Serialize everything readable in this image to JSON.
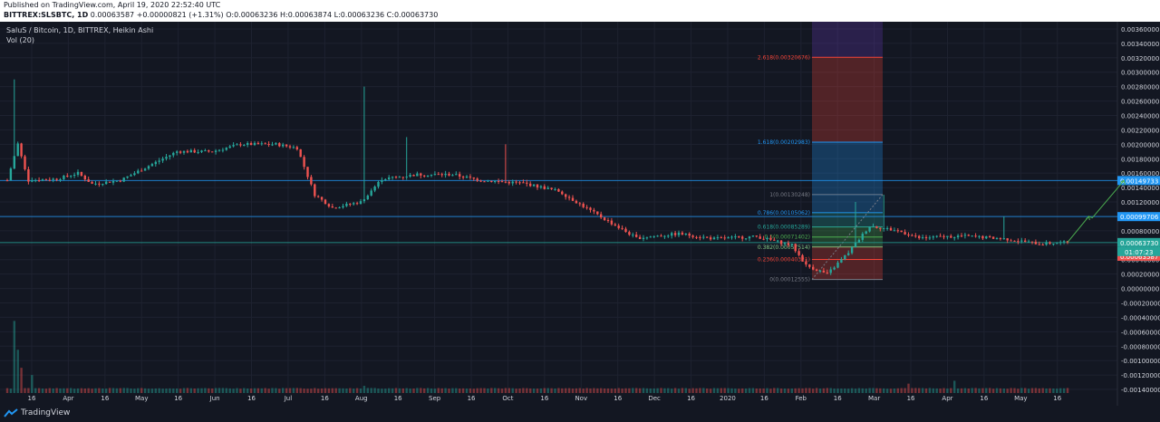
{
  "header": {
    "published": "Published on TradingView.com, April 19, 2020 22:52:40 UTC",
    "symbol": "BITTREX:SLSBTC, 1D",
    "last": "0.00063587",
    "change": "+0.00000821 (+1.31%)",
    "o_label": "O:",
    "o": "0.00063236",
    "h_label": "H:",
    "h": "0.00063874",
    "l_label": "L:",
    "l": "0.00063236",
    "c_label": "C:",
    "c": "0.00063730"
  },
  "legend": {
    "title": "SaluS / Bitcoin, 1D, BITTREX, Heikin Ashi",
    "volume": "Vol (20)"
  },
  "brand": {
    "name": "TradingView",
    "icon": "tradingview-logo-icon"
  },
  "colors": {
    "background": "#131722",
    "grid": "#1e2230",
    "up": "#26a69a",
    "down": "#ef5350",
    "axis_text": "#d1d4dc",
    "hline": "#2196f3",
    "arrow": "#4caf50"
  },
  "chart_data": {
    "type": "candlestick",
    "style": "Heikin Ashi",
    "x_ticks": [
      "16",
      "Apr",
      "16",
      "May",
      "16",
      "Jun",
      "16",
      "Jul",
      "16",
      "Aug",
      "16",
      "Sep",
      "16",
      "Oct",
      "16",
      "Nov",
      "16",
      "Dec",
      "16",
      "2020",
      "16",
      "Feb",
      "16",
      "Mar",
      "16",
      "Apr",
      "16",
      "May",
      "16"
    ],
    "y_ticks": [
      "0.00360000",
      "0.00340000",
      "0.00320000",
      "0.00300000",
      "0.00280000",
      "0.00260000",
      "0.00240000",
      "0.00220000",
      "0.00200000",
      "0.00180000",
      "0.00160000",
      "0.00140000",
      "0.00120000",
      "0.00100000",
      "0.00080000",
      "0.00060000",
      "0.00040000",
      "0.00020000",
      "0.00000000",
      "-0.00020000",
      "-0.00040000",
      "-0.00060000",
      "-0.00080000",
      "-0.00100000",
      "-0.00120000",
      "-0.00140000"
    ],
    "ylim": [
      -0.00145,
      0.0037
    ],
    "price_path": [
      {
        "t": 0,
        "v": 0.0015
      },
      {
        "t": 3,
        "v": 0.002
      },
      {
        "t": 6,
        "v": 0.0015
      },
      {
        "t": 14,
        "v": 0.00152
      },
      {
        "t": 20,
        "v": 0.0016
      },
      {
        "t": 24,
        "v": 0.00145
      },
      {
        "t": 32,
        "v": 0.0015
      },
      {
        "t": 40,
        "v": 0.0017
      },
      {
        "t": 48,
        "v": 0.0019
      },
      {
        "t": 58,
        "v": 0.0019
      },
      {
        "t": 66,
        "v": 0.002
      },
      {
        "t": 76,
        "v": 0.002
      },
      {
        "t": 82,
        "v": 0.00195
      },
      {
        "t": 87,
        "v": 0.0013
      },
      {
        "t": 92,
        "v": 0.00112
      },
      {
        "t": 100,
        "v": 0.0012
      },
      {
        "t": 106,
        "v": 0.00152
      },
      {
        "t": 116,
        "v": 0.00158
      },
      {
        "t": 126,
        "v": 0.00158
      },
      {
        "t": 134,
        "v": 0.0015
      },
      {
        "t": 146,
        "v": 0.00146
      },
      {
        "t": 156,
        "v": 0.00135
      },
      {
        "t": 166,
        "v": 0.00105
      },
      {
        "t": 178,
        "v": 0.0007
      },
      {
        "t": 190,
        "v": 0.00076
      },
      {
        "t": 200,
        "v": 0.00069
      },
      {
        "t": 212,
        "v": 0.00072
      },
      {
        "t": 222,
        "v": 0.0006
      },
      {
        "t": 226,
        "v": 0.00032
      },
      {
        "t": 232,
        "v": 0.0002
      },
      {
        "t": 238,
        "v": 0.0005
      },
      {
        "t": 244,
        "v": 0.00087
      },
      {
        "t": 252,
        "v": 0.0008
      },
      {
        "t": 258,
        "v": 0.0007
      },
      {
        "t": 270,
        "v": 0.00073
      },
      {
        "t": 282,
        "v": 0.00069
      },
      {
        "t": 292,
        "v": 0.00062
      },
      {
        "t": 300,
        "v": 0.00064
      }
    ],
    "volume_spike": "Mar 16",
    "fibonacci": {
      "levels": [
        {
          "label": "2.618(0.00320676)",
          "value": 0.00320676,
          "color": "#f44336"
        },
        {
          "label": "1.618(0.00202983)",
          "value": 0.00202983,
          "color": "#2196f3"
        },
        {
          "label": "1(0.00130248)",
          "value": 0.00130248,
          "color": "#787b86"
        },
        {
          "label": "0.786(0.00105062)",
          "value": 0.00105062,
          "color": "#2196f3"
        },
        {
          "label": "0.618(0.00085289)",
          "value": 0.00085289,
          "color": "#26a69a"
        },
        {
          "label": "0.5(0.00071402)",
          "value": 0.00071402,
          "color": "#4caf50"
        },
        {
          "label": "0.382(0.00057514)",
          "value": 0.00057514,
          "color": "#81c784"
        },
        {
          "label": "0.236(0.00040321)",
          "value": 0.00040321,
          "color": "#f44336"
        },
        {
          "label": "0(0.00012555)",
          "value": 0.00012555,
          "color": "#787b86"
        }
      ],
      "top": 0.0037
    },
    "horizontal_lines": [
      {
        "value": 0.00149733,
        "label": "0.00149733",
        "color": "#2196f3"
      },
      {
        "value": 0.00099706,
        "label": "0.00099706",
        "color": "#2196f3"
      },
      {
        "value": 0.0006373,
        "label": "0.00063730",
        "color": "#26a69a"
      },
      {
        "value": 0.00063587,
        "label": "0.00063587",
        "color": "#ef5350"
      }
    ],
    "countdown": "01:07:23",
    "projection": [
      {
        "t": 300,
        "v": 0.00064
      },
      {
        "t": 306,
        "v": 0.001
      },
      {
        "t": 307,
        "v": 0.00098
      },
      {
        "t": 316,
        "v": 0.0015
      }
    ]
  }
}
